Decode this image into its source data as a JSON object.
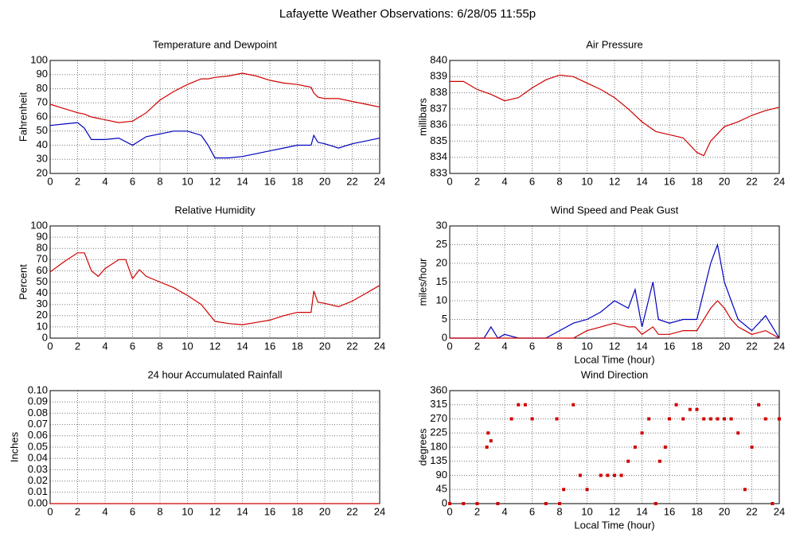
{
  "title": "Lafayette Weather Observations: 6/28/05 11:55p",
  "chart_data": [
    {
      "type": "line",
      "title": "Temperature and Dewpoint",
      "ylabel": "Fahrenheit",
      "grid": true,
      "xlim": [
        0,
        24
      ],
      "xticks": [
        0,
        2,
        4,
        6,
        8,
        10,
        12,
        14,
        16,
        18,
        20,
        22,
        24
      ],
      "ylim": [
        20,
        100
      ],
      "yticks": [
        20,
        30,
        40,
        50,
        60,
        70,
        80,
        90,
        100
      ],
      "x": [
        0,
        1,
        2,
        2.5,
        3,
        4,
        5,
        6,
        7,
        8,
        9,
        10,
        11,
        11.5,
        12,
        13,
        14,
        15,
        16,
        17,
        18,
        19,
        19.2,
        19.5,
        20,
        21,
        22,
        23,
        24
      ],
      "series": [
        {
          "name": "Temperature",
          "color": "#d00000",
          "values": [
            69,
            66,
            63,
            62,
            60,
            58,
            56,
            57,
            63,
            72,
            78,
            83,
            87,
            87,
            88,
            89,
            91,
            89,
            86,
            84,
            83,
            81,
            77,
            74,
            73,
            73,
            71,
            69,
            67
          ]
        },
        {
          "name": "Dewpoint",
          "color": "#0000c0",
          "values": [
            54,
            55,
            56,
            52,
            44,
            44,
            45,
            40,
            46,
            48,
            50,
            50,
            47,
            40,
            31,
            31,
            32,
            34,
            36,
            38,
            40,
            40,
            47,
            42,
            41,
            38,
            41,
            43,
            45
          ]
        }
      ]
    },
    {
      "type": "line",
      "title": "Air Pressure",
      "ylabel": "millibars",
      "grid": true,
      "xlim": [
        0,
        24
      ],
      "xticks": [
        0,
        2,
        4,
        6,
        8,
        10,
        12,
        14,
        16,
        18,
        20,
        22,
        24
      ],
      "ylim": [
        833,
        840
      ],
      "yticks": [
        833,
        834,
        835,
        836,
        837,
        838,
        839,
        840
      ],
      "x": [
        0,
        1,
        2,
        3,
        4,
        5,
        6,
        7,
        8,
        9,
        10,
        11,
        12,
        13,
        14,
        15,
        16,
        17,
        18,
        18.5,
        19,
        20,
        21,
        22,
        23,
        24
      ],
      "series": [
        {
          "name": "Pressure",
          "color": "#d00000",
          "values": [
            838.7,
            838.7,
            838.2,
            837.9,
            837.5,
            837.7,
            838.3,
            838.8,
            839.1,
            839.0,
            838.6,
            838.2,
            837.7,
            837.0,
            836.2,
            835.6,
            835.4,
            835.2,
            834.3,
            834.1,
            835.0,
            835.9,
            836.2,
            836.6,
            836.9,
            837.1
          ]
        }
      ]
    },
    {
      "type": "line",
      "title": "Relative Humidity",
      "ylabel": "Percent",
      "grid": true,
      "xlim": [
        0,
        24
      ],
      "xticks": [
        0,
        2,
        4,
        6,
        8,
        10,
        12,
        14,
        16,
        18,
        20,
        22,
        24
      ],
      "ylim": [
        0,
        100
      ],
      "yticks": [
        0,
        10,
        20,
        30,
        40,
        50,
        60,
        70,
        80,
        90,
        100
      ],
      "x": [
        0,
        1,
        2,
        2.5,
        3,
        3.5,
        4,
        5,
        5.5,
        6,
        6.5,
        7,
        8,
        9,
        10,
        11,
        12,
        13,
        14,
        15,
        16,
        17,
        18,
        19,
        19.2,
        19.5,
        20,
        21,
        22,
        23,
        24
      ],
      "series": [
        {
          "name": "Humidity",
          "color": "#d00000",
          "values": [
            59,
            68,
            76,
            76,
            60,
            55,
            62,
            70,
            70,
            53,
            61,
            55,
            50,
            45,
            38,
            30,
            15,
            13,
            12,
            14,
            16,
            20,
            23,
            23,
            42,
            32,
            31,
            28,
            33,
            40,
            47
          ]
        }
      ]
    },
    {
      "type": "line",
      "title": "Wind Speed and Peak Gust",
      "ylabel": "miles/hour",
      "xlabel": "Local Time (hour)",
      "grid": true,
      "xlim": [
        0,
        24
      ],
      "xticks": [
        0,
        2,
        4,
        6,
        8,
        10,
        12,
        14,
        16,
        18,
        20,
        22,
        24
      ],
      "ylim": [
        0,
        30
      ],
      "yticks": [
        0,
        5,
        10,
        15,
        20,
        25,
        30
      ],
      "x": [
        0,
        2.5,
        3,
        3.5,
        4,
        5,
        6,
        7,
        8,
        9,
        10,
        11,
        12,
        13,
        13.5,
        14,
        14.8,
        15.2,
        16,
        17,
        18,
        19,
        19.5,
        20,
        20.5,
        21,
        22,
        23,
        24
      ],
      "series": [
        {
          "name": "Peak Gust",
          "color": "#0000c0",
          "values": [
            0,
            0,
            3,
            0,
            1,
            0,
            0,
            0,
            2,
            4,
            5,
            7,
            10,
            8,
            13,
            3,
            15,
            5,
            4,
            5,
            5,
            20,
            25,
            15,
            10,
            5,
            2,
            6,
            0
          ]
        },
        {
          "name": "Wind Speed",
          "color": "#d00000",
          "values": [
            0,
            0,
            0,
            0,
            0,
            0,
            0,
            0,
            0,
            0,
            2,
            3,
            4,
            3,
            3,
            1,
            3,
            1,
            1,
            2,
            2,
            8,
            10,
            8,
            5,
            3,
            1,
            2,
            0
          ]
        }
      ]
    },
    {
      "type": "line",
      "title": "24 hour Accumulated Rainfall",
      "ylabel": "Inches",
      "grid": true,
      "xlim": [
        0,
        24
      ],
      "xticks": [
        0,
        2,
        4,
        6,
        8,
        10,
        12,
        14,
        16,
        18,
        20,
        22,
        24
      ],
      "ylim": [
        0,
        0.1
      ],
      "yticks": [
        {
          "value": 0,
          "label": "0.00"
        },
        {
          "value": 0.01,
          "label": "0.01"
        },
        {
          "value": 0.02,
          "label": "0.02"
        },
        {
          "value": 0.03,
          "label": "0.03"
        },
        {
          "value": 0.04,
          "label": "0.04"
        },
        {
          "value": 0.05,
          "label": "0.05"
        },
        {
          "value": 0.06,
          "label": "0.06"
        },
        {
          "value": 0.07,
          "label": "0.07"
        },
        {
          "value": 0.08,
          "label": "0.08"
        },
        {
          "value": 0.09,
          "label": "0.09"
        },
        {
          "value": 0.1,
          "label": "0.10"
        }
      ],
      "x": [
        0,
        24
      ],
      "series": [
        {
          "name": "Rainfall",
          "color": "#d00000",
          "values": [
            0,
            0
          ]
        }
      ]
    },
    {
      "type": "scatter",
      "title": "Wind Direction",
      "ylabel": "degrees",
      "xlabel": "Local Time (hour)",
      "grid": true,
      "color": "#d00000",
      "xlim": [
        0,
        24
      ],
      "xticks": [
        0,
        2,
        4,
        6,
        8,
        10,
        12,
        14,
        16,
        18,
        20,
        22,
        24
      ],
      "ylim": [
        0,
        360
      ],
      "yticks": [
        0,
        45,
        90,
        135,
        180,
        225,
        270,
        315,
        360
      ],
      "x": [
        0,
        1,
        2,
        2.7,
        2.8,
        3,
        3.5,
        4.5,
        5,
        5.5,
        6,
        7,
        7.8,
        8,
        8.3,
        9,
        9.5,
        10,
        11,
        11.5,
        12,
        12.5,
        13,
        13.5,
        14,
        14.5,
        15,
        15.3,
        15.7,
        16,
        16.5,
        17,
        17.5,
        18,
        18.5,
        19,
        19.5,
        20,
        20.5,
        21,
        21.5,
        22,
        22.5,
        23,
        23.5,
        24
      ],
      "values": [
        0,
        0,
        0,
        180,
        225,
        200,
        0,
        270,
        315,
        315,
        270,
        0,
        270,
        0,
        45,
        315,
        90,
        45,
        90,
        90,
        90,
        90,
        135,
        180,
        225,
        270,
        0,
        135,
        180,
        270,
        315,
        270,
        300,
        300,
        270,
        270,
        270,
        270,
        270,
        225,
        45,
        180,
        315,
        270,
        0,
        270
      ]
    }
  ]
}
